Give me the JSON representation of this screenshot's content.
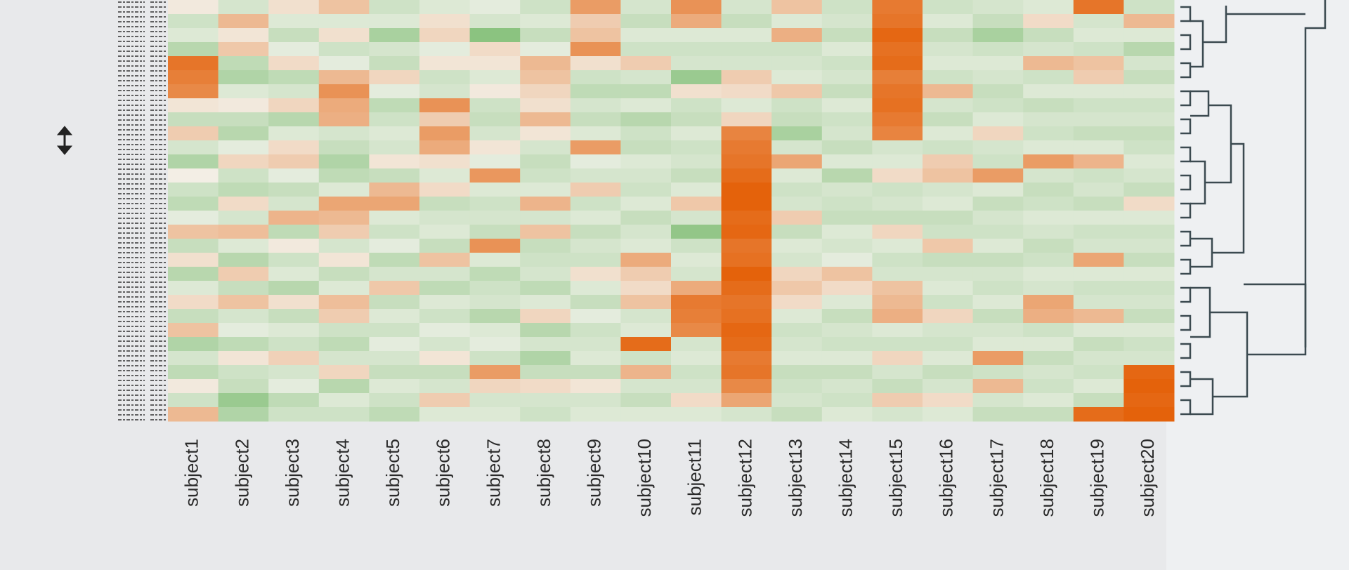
{
  "chart_data": {
    "type": "heatmap",
    "categories": [
      "subject1",
      "subject2",
      "subject3",
      "subject4",
      "subject5",
      "subject6",
      "subject7",
      "subject8",
      "subject9",
      "subject10",
      "subject11",
      "subject12",
      "subject13",
      "subject14",
      "subject15",
      "subject16",
      "subject17",
      "subject18",
      "subject19",
      "subject20"
    ],
    "zlim": [
      -2,
      3
    ],
    "colorscale": [
      "#5fae52",
      "#f3f3ec",
      "#e4620b"
    ],
    "values": [
      [
        0.2,
        -0.5,
        -0.3,
        -0.8,
        2.6,
        2.4,
        2.2,
        0.3,
        -0.6,
        0.8,
        -0.4,
        -0.9,
        0.1,
        -0.5,
        -0.7,
        -0.2,
        1.0,
        -0.6,
        0.4,
        -0.8,
        -0.3,
        0.5,
        -0.6,
        1.0,
        -0.9,
        -0.4,
        -0.7,
        0.2,
        -0.5,
        1.2
      ],
      [
        -0.4,
        1.2,
        0.3,
        0.9,
        -0.7,
        -0.9,
        -0.3,
        0.2,
        -0.6,
        -0.8,
        -0.2,
        0.6,
        -0.5,
        -0.7,
        0.5,
        -0.4,
        1.1,
        -0.3,
        -0.8,
        0.8,
        -0.6,
        1.0,
        -0.4,
        -0.2,
        -0.7,
        0.3,
        -0.5,
        -0.6,
        -1.2,
        -0.9
      ],
      [
        0.4,
        -0.3,
        -0.6,
        -0.2,
        0.5,
        -0.7,
        -0.4,
        0.6,
        -0.8,
        -0.3,
        0.5,
        0.8,
        -0.2,
        -0.6,
        -0.4,
        1.3,
        -0.7,
        0.2,
        -0.5,
        -0.3,
        -0.8,
        0.4,
        -0.6,
        -0.3,
        -0.5,
        0.7,
        -0.4,
        -0.2,
        -0.7,
        -0.5
      ],
      [
        1.0,
        -0.3,
        0.4,
        -0.5,
        -0.2,
        1.2,
        2.0,
        1.5,
        1.4,
        -0.4,
        -0.6,
        -0.9,
        -0.7,
        -0.3,
        1.6,
        1.2,
        0.8,
        -0.4,
        0.3,
        -0.6,
        -0.3,
        1.1,
        0.8,
        -0.5,
        -0.7,
        -0.4,
        0.6,
        -0.8,
        -0.3,
        -0.5
      ],
      [
        -0.5,
        -0.3,
        -1.0,
        -0.4,
        -0.6,
        0.6,
        -0.2,
        -0.7,
        -0.5,
        -0.3,
        -0.4,
        0.3,
        -0.6,
        1.2,
        1.6,
        -0.3,
        -0.5,
        -0.2,
        -0.7,
        -0.4,
        0.9,
        -0.6,
        -0.3,
        -0.5,
        -0.2,
        -0.4,
        -0.6,
        -0.3,
        -0.5,
        -0.7
      ],
      [
        -0.3,
        0.4,
        0.6,
        -0.2,
        0.3,
        -0.5,
        -0.4,
        2.0,
        0.8,
        1.8,
        1.5,
        0.4,
        -0.3,
        0.5,
        -0.6,
        -0.4,
        -0.3,
        -0.6,
        1.0,
        -0.4,
        -0.7,
        -0.3,
        -0.5,
        -0.2,
        -0.4,
        0.3,
        -0.6,
        -0.4,
        0.8,
        -0.3
      ],
      [
        -0.2,
        -0.4,
        -1.4,
        0.5,
        0.3,
        -0.3,
        0.2,
        -0.5,
        -0.6,
        -0.4,
        0.3,
        -0.2,
        1.9,
        -0.3,
        -0.5,
        -0.4,
        -0.6,
        2.0,
        -0.3,
        -0.7,
        -0.5,
        -0.4,
        -0.8,
        -0.3,
        -0.2,
        -0.5,
        1.8,
        0.6,
        -0.4,
        -0.3
      ],
      [
        -0.5,
        -0.3,
        -0.6,
        -0.2,
        1.2,
        1.0,
        0.6,
        0.4,
        1.2,
        0.3,
        -0.4,
        -0.6,
        -0.5,
        -0.3,
        1.3,
        -0.4,
        1.0,
        -0.6,
        -0.5,
        -0.4,
        -0.7,
        -0.3,
        0.6,
        -0.8,
        -0.4,
        -0.9,
        -0.6,
        0.5,
        -0.4,
        -0.5
      ],
      [
        1.8,
        0.8,
        1.0,
        2.0,
        0.4,
        -0.5,
        -0.7,
        -0.4,
        -0.6,
        -0.3,
        1.8,
        -0.2,
        -0.4,
        0.8,
        -0.5,
        -0.3,
        -0.6,
        -0.4,
        -0.5,
        0.4,
        -0.3,
        -0.6,
        -0.2,
        -0.5,
        -0.4,
        -0.3,
        -0.6,
        0.3,
        -0.4,
        -0.3
      ],
      [
        -0.4,
        -0.6,
        -0.3,
        -0.5,
        0.8,
        -0.4,
        -0.7,
        -0.3,
        -0.8,
        -0.5,
        -0.6,
        -0.3,
        -0.4,
        -0.5,
        -0.3,
        -0.6,
        -0.4,
        -0.3,
        1.5,
        0.8,
        0.5,
        1.0,
        -0.4,
        -0.3,
        2.8,
        -0.5,
        1.3,
        -0.4,
        -0.6,
        -0.3
      ],
      [
        2.0,
        1.5,
        -0.3,
        -0.5,
        -0.4,
        -1.2,
        0.4,
        -0.5,
        -0.6,
        -0.3,
        -0.5,
        -0.4,
        -0.6,
        -0.3,
        0.9,
        -0.4,
        -1.3,
        -0.5,
        -0.3,
        -0.4,
        1.5,
        2.5,
        2.4,
        2.2,
        -0.4,
        -0.3,
        -0.5,
        -0.4,
        0.5,
        -0.3
      ],
      [
        -0.4,
        -0.6,
        -0.3,
        -0.5,
        -0.4,
        0.8,
        0.5,
        -0.3,
        0.6,
        2.3,
        2.5,
        2.6,
        2.8,
        3.0,
        3.0,
        2.8,
        2.9,
        2.6,
        2.7,
        3.0,
        2.8,
        2.6,
        2.7,
        2.9,
        2.8,
        2.5,
        2.6,
        2.2,
        1.6,
        -0.4
      ],
      [
        1.0,
        -0.3,
        1.4,
        -0.5,
        -0.4,
        -0.3,
        0.9,
        -0.5,
        -0.6,
        -1.0,
        -0.4,
        1.6,
        -0.3,
        -0.5,
        -0.4,
        0.8,
        -0.6,
        -0.3,
        -0.4,
        0.6,
        0.9,
        0.5,
        -0.3,
        -0.5,
        -0.4,
        -0.3,
        -0.6,
        -0.5,
        -0.4,
        -0.6
      ],
      [
        -0.5,
        -0.4,
        -0.6,
        -0.3,
        -0.5,
        -0.4,
        -0.6,
        -0.3,
        -0.5,
        -0.4,
        -0.6,
        -0.3,
        -0.8,
        -0.4,
        -0.5,
        -0.6,
        -0.3,
        -0.4,
        -0.2,
        1.0,
        0.5,
        -0.3,
        -0.6,
        -0.4,
        -0.5,
        -0.3,
        -0.6,
        -0.4,
        -0.5,
        -0.3
      ],
      [
        2.5,
        2.6,
        2.9,
        2.7,
        2.8,
        2.4,
        2.6,
        2.7,
        2.5,
        2.3,
        -0.4,
        -0.3,
        0.5,
        -0.5,
        -0.4,
        -0.6,
        0.6,
        -0.3,
        -0.5,
        -0.4,
        1.0,
        1.2,
        1.4,
        -0.3,
        -0.5,
        0.6,
        -0.4,
        -0.6,
        0.8,
        -0.4
      ],
      [
        -0.5,
        -0.3,
        -0.6,
        -0.4,
        -0.3,
        -0.5,
        1.2,
        -0.4,
        -0.6,
        -0.3,
        -0.5,
        0.8,
        1.0,
        -0.4,
        -0.3,
        -0.6,
        -0.5,
        0.9,
        -0.6,
        -0.4,
        -0.3,
        -0.5,
        0.6,
        -0.4,
        -0.5,
        -0.3,
        -0.6,
        -0.4,
        0.5,
        -0.3
      ],
      [
        -0.4,
        -0.6,
        -1.0,
        -0.5,
        -0.3,
        -0.4,
        -0.6,
        -0.5,
        -0.3,
        0.6,
        -0.4,
        -0.5,
        1.8,
        -0.3,
        -0.6,
        -0.4,
        -0.5,
        -0.3,
        -0.6,
        -0.4,
        -0.5,
        -0.3,
        -0.6,
        -0.4,
        -0.3,
        1.8,
        -0.5,
        1.2,
        -0.4,
        -0.6
      ],
      [
        -0.3,
        0.5,
        -0.6,
        -0.4,
        1.2,
        -0.5,
        -0.3,
        -0.6,
        -0.4,
        -0.5,
        -0.3,
        1.8,
        -0.4,
        -0.6,
        -0.5,
        -0.3,
        -0.4,
        -0.6,
        -0.5,
        -0.3,
        -0.4,
        1.6,
        1.4,
        -0.5,
        -0.3,
        -0.6,
        -0.4,
        -0.5,
        -0.3,
        -0.6
      ],
      [
        2.6,
        -0.4,
        -0.3,
        -0.5,
        1.0,
        0.8,
        -0.3,
        -0.5,
        -0.4,
        -0.6,
        -0.3,
        1.3,
        -0.5,
        -0.4,
        -0.6,
        -0.3,
        -0.5,
        -0.4,
        1.6,
        -0.3,
        -0.5,
        -0.4,
        1.2,
        -0.3,
        -0.6,
        -0.4,
        -0.5,
        -0.3,
        -0.6,
        2.8
      ],
      [
        -0.5,
        1.2,
        -0.3,
        -0.8,
        -0.4,
        -0.6,
        -0.3,
        -0.5,
        -0.4,
        -0.6,
        -0.5,
        -0.3,
        -0.4,
        -0.6,
        0.5,
        -0.3,
        -0.5,
        -0.4,
        -0.6,
        -0.3,
        -0.5,
        -0.4,
        -0.6,
        -0.3,
        -0.5,
        -0.4,
        2.9,
        3.0,
        2.9,
        3.0
      ]
    ]
  }
}
